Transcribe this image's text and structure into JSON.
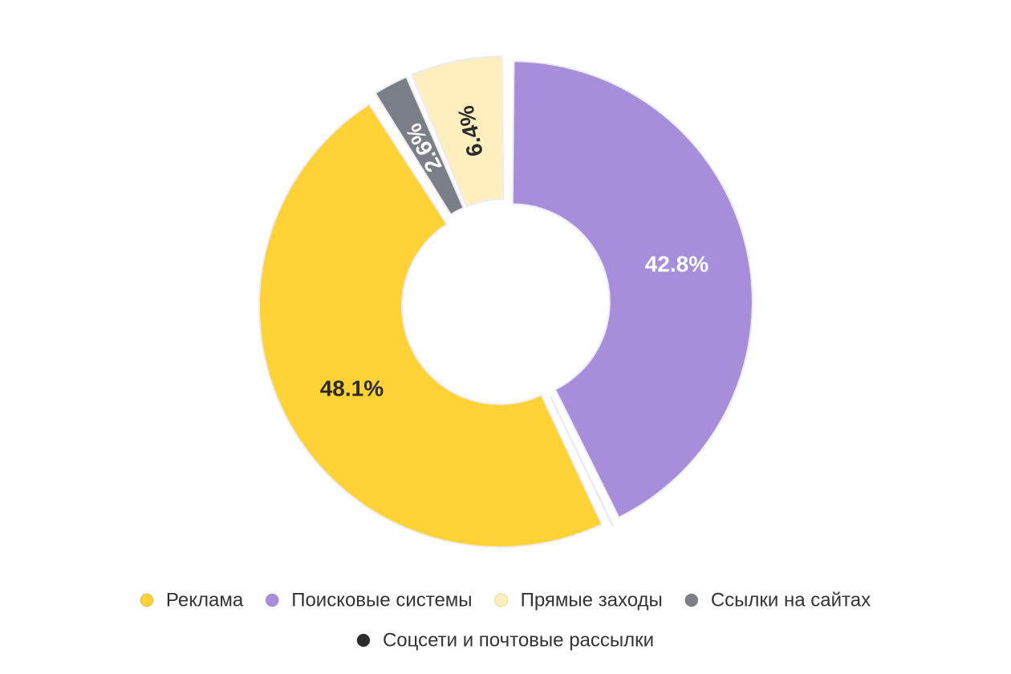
{
  "chart_data": {
    "type": "pie",
    "style": "donut",
    "title": "",
    "categories": [
      "Реклама",
      "Поисковые системы",
      "Прямые заходы",
      "Ссылки на сайтах",
      "Соцсети и почтовые рассылки"
    ],
    "values": [
      48.1,
      42.8,
      6.4,
      2.6,
      0.1
    ],
    "labels": [
      "48.1%",
      "42.8%",
      "6.4%",
      "2.6%",
      ""
    ],
    "colors": [
      "#FFD236",
      "#A78EDB",
      "#FFEFBE",
      "#7A7F87",
      "#2B2B2B"
    ],
    "label_colors": [
      "#2B2B2B",
      "#FFFFFF",
      "#2B2B2B",
      "#FFFFFF",
      "#2B2B2B"
    ],
    "legend_position": "bottom",
    "exploded": true
  }
}
